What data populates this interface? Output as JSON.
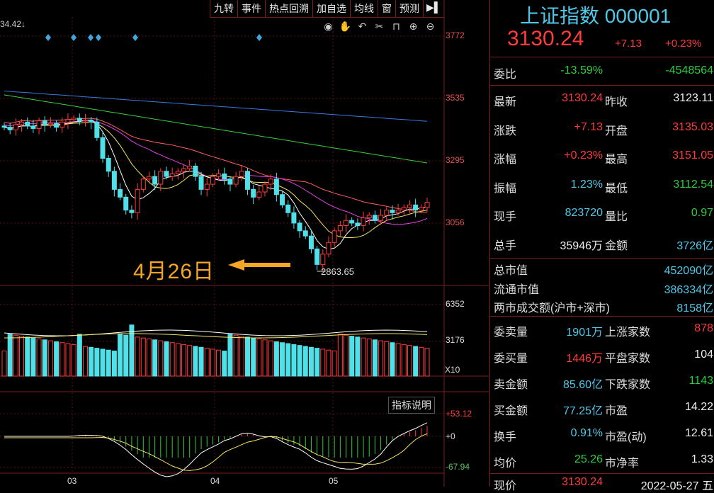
{
  "toolbar": {
    "items": [
      "九转",
      "事件",
      "热点回溯",
      "加自选",
      "均线",
      "窗",
      "预测"
    ]
  },
  "top_value": "34.42",
  "chart": {
    "price_axis": [
      "3772",
      "3535",
      "3295",
      "3056"
    ],
    "volume_axis": [
      "6352",
      "3176",
      "X10"
    ],
    "indicator_axis": [
      "+53.12",
      "+0",
      "-67.94"
    ],
    "dates": [
      "03",
      "04",
      "05"
    ],
    "annotation": "4月26日",
    "low_label": "2863.65",
    "indicator_button": "指标说明"
  },
  "colors": {
    "up": "#ff3b3b",
    "down": "#4fe0e8",
    "ma5": "#ffffff",
    "ma10": "#f5e663",
    "ma20": "#e040e0",
    "ma30": "#ff6060",
    "ma60": "#3ecc3e",
    "ma120": "#3a7ae0"
  },
  "chart_data": {
    "type": "candlestick",
    "period_labels": [
      "03",
      "04",
      "05"
    ],
    "low_point": 2863.65,
    "ylim": [
      2863.65,
      3772
    ],
    "series": [
      {
        "name": "close",
        "values": [
          3420,
          3410,
          3430,
          3440,
          3425,
          3415,
          3445,
          3430,
          3435,
          3420,
          3440,
          3450,
          3455,
          3445,
          3448,
          3440,
          3380,
          3300,
          3250,
          3180,
          3150,
          3100,
          3090,
          3180,
          3220,
          3230,
          3200,
          3250,
          3230,
          3240,
          3250,
          3260,
          3270,
          3230,
          3180,
          3200,
          3230,
          3240,
          3220,
          3200,
          3230,
          3250,
          3180,
          3150,
          3170,
          3200,
          3220,
          3160,
          3120,
          3090,
          3050,
          3020,
          3000,
          2950,
          2890,
          2930,
          2975,
          3020,
          3040,
          3060,
          3050,
          3040,
          3070,
          3080,
          3060,
          3080,
          3100,
          3090,
          3100,
          3110,
          3120,
          3100,
          3110,
          3130
        ]
      }
    ]
  },
  "panel": {
    "title": "上证指数 000001",
    "price": "3130.24",
    "change": "+7.13",
    "change_pct": "+0.23%",
    "weibi": {
      "k": "委比",
      "v1": "-13.59%",
      "v2": "-4548564"
    },
    "rows": [
      {
        "k1": "最新",
        "v1": "3130.24",
        "k2": "昨收",
        "v2": "3123.11"
      },
      {
        "k1": "涨跌",
        "v1": "+7.13",
        "k2": "开盘",
        "v2": "3135.03"
      },
      {
        "k1": "涨幅",
        "v1": "+0.23%",
        "k2": "最高",
        "v2": "3151.05"
      },
      {
        "k1": "振幅",
        "v1": "1.23%",
        "k2": "最低",
        "v2": "3112.54"
      },
      {
        "k1": "现手",
        "v1": "823720",
        "k2": "量比",
        "v2": "0.97"
      },
      {
        "k1": "总手",
        "v1": "35946万",
        "k2": "金额",
        "v2": "3726亿"
      }
    ],
    "caps": [
      {
        "k": "总市值",
        "v": "452090亿"
      },
      {
        "k": "流通市值",
        "v": "386334亿"
      },
      {
        "k": "两市成交额(沪市+深市)",
        "v": "8158亿"
      }
    ],
    "rows2": [
      {
        "k1": "委卖量",
        "v1": "1901万",
        "k2": "上涨家数",
        "v2": "878"
      },
      {
        "k1": "委买量",
        "v1": "1446万",
        "k2": "平盘家数",
        "v2": "104"
      },
      {
        "k1": "卖金额",
        "v1": "85.60亿",
        "k2": "下跌家数",
        "v2": "1143"
      },
      {
        "k1": "买金额",
        "v1": "77.25亿",
        "k2": "市盈",
        "v2": "14.22"
      },
      {
        "k1": "换手",
        "v1": "0.91%",
        "k2": "市盈(动)",
        "v2": "12.61"
      },
      {
        "k1": "均价",
        "v1": "25.26",
        "k2": "市净率",
        "v2": "1.33"
      }
    ],
    "footer": {
      "k": "现价",
      "v": "3130.24",
      "date": "2022-05-27 五"
    }
  }
}
